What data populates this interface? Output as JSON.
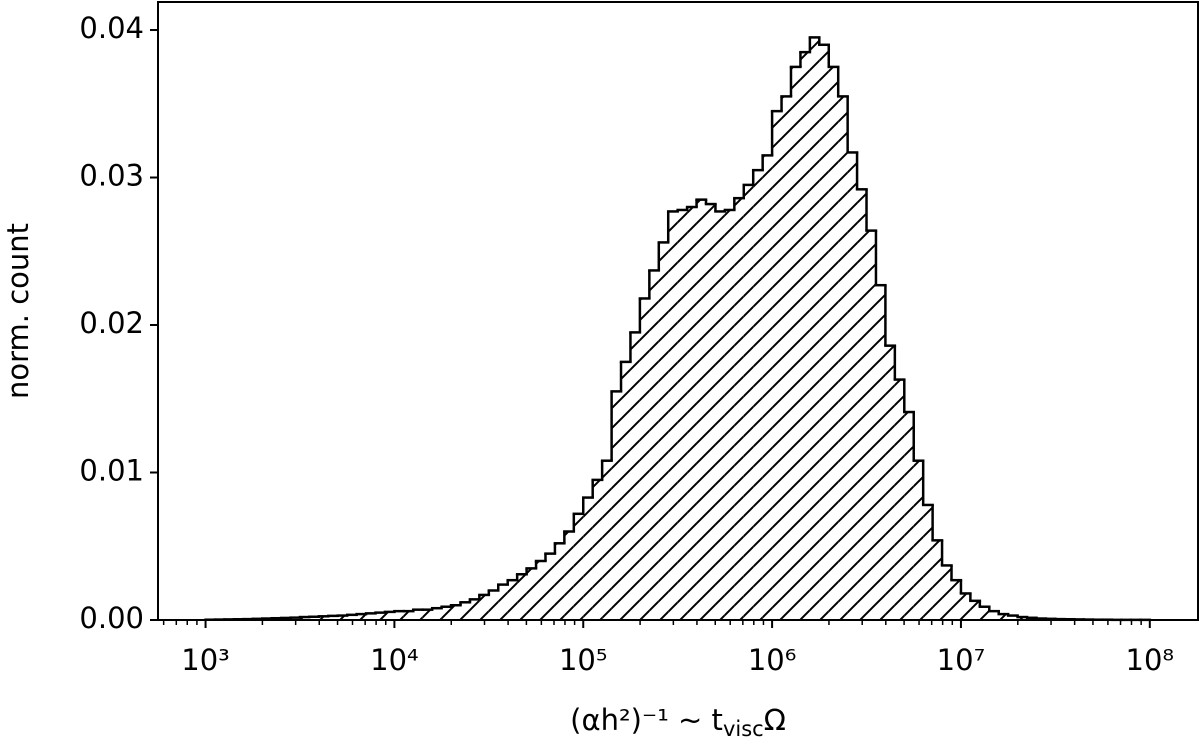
{
  "chart_data": {
    "type": "histogram",
    "ylabel": "norm. count",
    "xlabel": {
      "main": "(αh²)⁻¹ ~ t",
      "sub": "visc",
      "end": "Ω"
    },
    "xscale": "log",
    "color": "#000000",
    "hatch": "//",
    "xlim": [
      560,
      180000000
    ],
    "ylim": [
      0,
      0.0419
    ],
    "xticks": [
      {
        "value": 1000,
        "label": "10³"
      },
      {
        "value": 10000,
        "label": "10⁴"
      },
      {
        "value": 100000,
        "label": "10⁵"
      },
      {
        "value": 1000000,
        "label": "10⁶"
      },
      {
        "value": 10000000,
        "label": "10⁷"
      },
      {
        "value": 100000000,
        "label": "10⁸"
      }
    ],
    "xminorticks": [
      600,
      700,
      800,
      900,
      2000,
      3000,
      4000,
      5000,
      6000,
      7000,
      8000,
      9000,
      20000,
      30000,
      40000,
      50000,
      60000,
      70000,
      80000,
      90000,
      200000,
      300000,
      400000,
      500000,
      600000,
      700000,
      800000,
      900000,
      2000000,
      3000000,
      4000000,
      5000000,
      6000000,
      7000000,
      8000000,
      9000000,
      20000000,
      30000000,
      40000000,
      50000000,
      60000000,
      70000000,
      80000000,
      90000000
    ],
    "yticks": [
      {
        "value": 0,
        "label": "0.00"
      },
      {
        "value": 0.01,
        "label": "0.01"
      },
      {
        "value": 0.02,
        "label": "0.02"
      },
      {
        "value": 0.03,
        "label": "0.03"
      },
      {
        "value": 0.04,
        "label": "0.04"
      }
    ],
    "bins": [
      1000,
      1122,
      1259,
      1413,
      1585,
      1778,
      1995,
      2239,
      2512,
      2818,
      3162,
      3548,
      3981,
      4467,
      5012,
      5623,
      6310,
      7079,
      7943,
      8913,
      10000,
      11220,
      12590,
      14130,
      15850,
      17780,
      19950,
      22390,
      25120,
      28180,
      31620,
      35480,
      39810,
      44670,
      50120,
      56230,
      63100,
      70790,
      79430,
      89130,
      100000,
      112200,
      125900,
      141300,
      158500,
      177800,
      199500,
      223900,
      251200,
      281800,
      316200,
      354800,
      398100,
      446700,
      501200,
      562300,
      631000,
      707900,
      794300,
      891300,
      1000000,
      1122000,
      1259000,
      1413000,
      1585000,
      1778000,
      1995000,
      2239000,
      2512000,
      2818000,
      3162000,
      3548000,
      3981000,
      4467000,
      5012000,
      5623000,
      6310000,
      7079000,
      7943000,
      8913000,
      10000000,
      11220000,
      12590000,
      14130000,
      15850000,
      17780000,
      19950000,
      22390000,
      25120000,
      28180000,
      31620000,
      35480000,
      39810000,
      44670000,
      50120000,
      56230000,
      63100000,
      70790000,
      79430000,
      89130000,
      100000000
    ],
    "values": [
      2e-05,
      3e-05,
      4e-05,
      5e-05,
      6e-05,
      8e-05,
      0.0001,
      0.00012,
      0.00014,
      0.00016,
      0.0002,
      0.00022,
      0.00025,
      0.00028,
      0.0003,
      0.00035,
      0.0004,
      0.00045,
      0.0005,
      0.00055,
      0.0006,
      0.0006,
      0.0007,
      0.0007,
      0.0008,
      0.0009,
      0.001,
      0.0012,
      0.0014,
      0.0017,
      0.002,
      0.0024,
      0.0027,
      0.0031,
      0.0035,
      0.004,
      0.0045,
      0.0052,
      0.006,
      0.0072,
      0.0083,
      0.0095,
      0.0108,
      0.0155,
      0.0175,
      0.0195,
      0.0218,
      0.0237,
      0.0256,
      0.0277,
      0.0278,
      0.028,
      0.0285,
      0.0282,
      0.0277,
      0.0278,
      0.0286,
      0.0295,
      0.0305,
      0.0315,
      0.0345,
      0.0355,
      0.0375,
      0.0385,
      0.0395,
      0.039,
      0.0375,
      0.0355,
      0.0317,
      0.0292,
      0.0264,
      0.0227,
      0.0186,
      0.0163,
      0.0141,
      0.0108,
      0.0078,
      0.0054,
      0.0037,
      0.0027,
      0.0018,
      0.0013,
      0.0009,
      0.0006,
      0.0004,
      0.0003,
      0.0002,
      0.00015,
      0.0001,
      8e-05,
      6e-05,
      5e-05,
      4e-05,
      3e-05,
      2e-05,
      2e-05,
      1e-05,
      1e-05,
      1e-05,
      1e-05
    ]
  }
}
